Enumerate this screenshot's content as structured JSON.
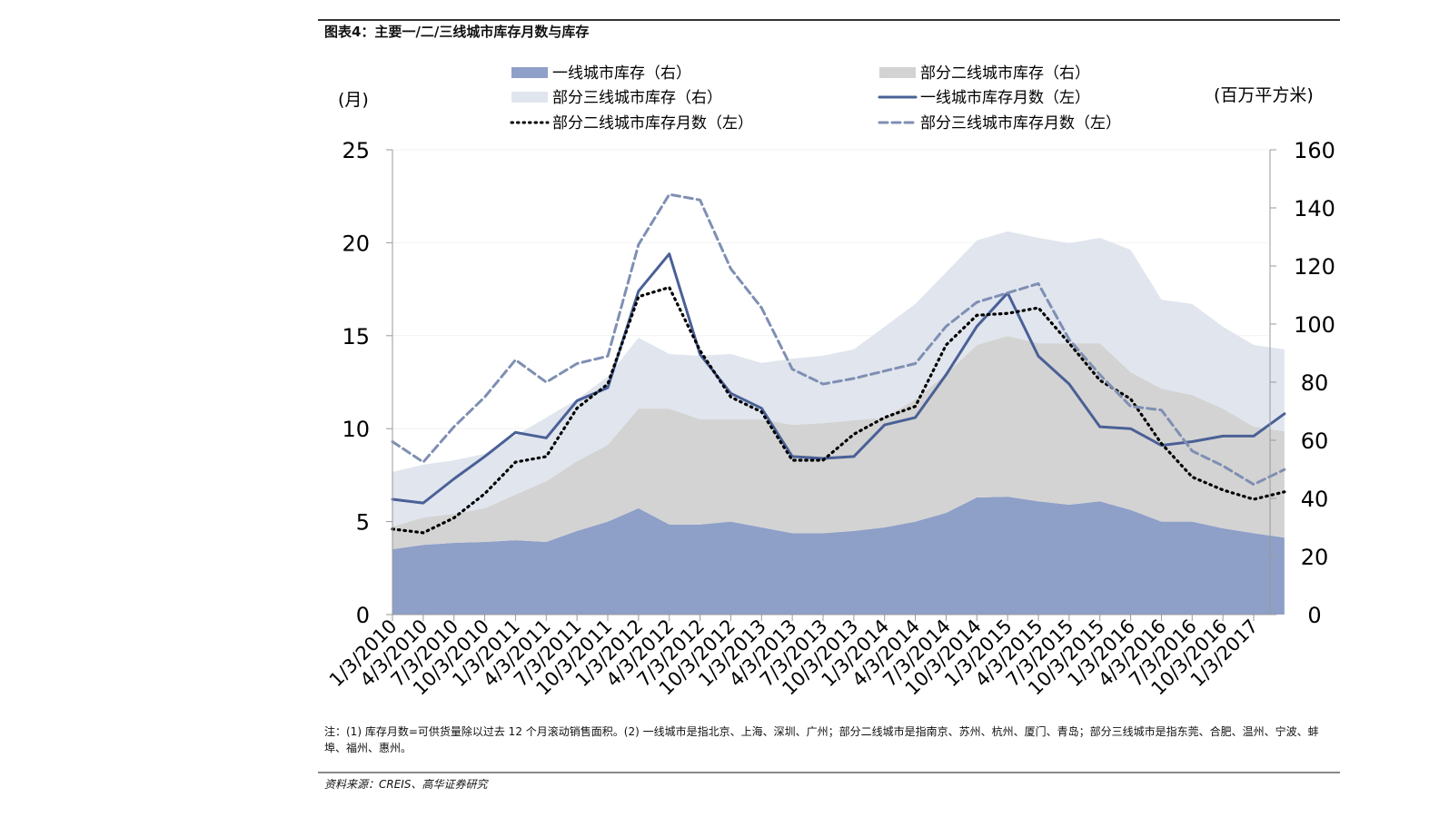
{
  "title": "图表4：主要一/二/三线城市库存月数与库存",
  "note": "注：(1) 库存月数=可供货量除以过去 12 个月滚动销售面积。(2) 一线城市是指北京、上海、深圳、广州；部分二线城市是指南京、苏州、杭州、厦门、青岛；部分三线城市是指东莞、合肥、温州、宁波、蚌埠、福州、惠州。",
  "source": "资料来源：CREIS、高华证券研究",
  "chart_data": {
    "type": "area+line",
    "title": "",
    "ylabel_left": "(月)",
    "ylabel_right": "(百万平方米)",
    "ylim_left": [
      0,
      25
    ],
    "ylim_right": [
      0,
      160
    ],
    "yticks_left": [
      "0",
      "5",
      "10",
      "15",
      "20",
      "25"
    ],
    "yticks_right": [
      "0",
      "20",
      "40",
      "60",
      "80",
      "100",
      "120",
      "140",
      "160"
    ],
    "grid": true,
    "legend_placement": "top",
    "xtick_labels": [
      "1/3/2010",
      "4/3/2010",
      "7/3/2010",
      "10/3/2010",
      "1/3/2011",
      "4/3/2011",
      "7/3/2011",
      "10/3/2011",
      "1/3/2012",
      "4/3/2012",
      "7/3/2012",
      "10/3/2012",
      "1/3/2013",
      "4/3/2013",
      "7/3/2013",
      "10/3/2013",
      "1/3/2014",
      "4/3/2014",
      "7/3/2014",
      "10/3/2014",
      "1/3/2015",
      "4/3/2015",
      "7/3/2015",
      "10/3/2015",
      "1/3/2016",
      "4/3/2016",
      "7/3/2016",
      "10/3/2016",
      "1/3/2017"
    ],
    "x": [
      "1/3/2010",
      "4/3/2010",
      "7/3/2010",
      "10/3/2010",
      "1/3/2011",
      "4/3/2011",
      "7/3/2011",
      "10/3/2011",
      "1/3/2012",
      "4/3/2012",
      "7/3/2012",
      "10/3/2012",
      "1/3/2013",
      "4/3/2013",
      "7/3/2013",
      "10/3/2013",
      "1/3/2014",
      "4/3/2014",
      "7/3/2014",
      "10/3/2014",
      "1/3/2015",
      "4/3/2015",
      "7/3/2015",
      "10/3/2015",
      "1/3/2016",
      "4/3/2016",
      "7/3/2016",
      "10/3/2016",
      "1/3/2017",
      "4/3/2017"
    ],
    "series": [
      {
        "name": "一线城市库存（右）",
        "kind": "stacked-area",
        "axis": "right",
        "color": "#8e9fc8",
        "values": [
          22.5,
          24,
          24.7,
          25,
          25.6,
          25,
          28.8,
          32,
          36.6,
          31,
          31,
          32,
          30,
          28,
          28,
          28.8,
          30,
          32,
          35,
          40.3,
          40.6,
          39,
          37.8,
          39,
          36,
          32,
          32,
          29.7,
          28,
          26.5
        ]
      },
      {
        "name": "部分二线城市库存（右）",
        "kind": "stacked-area",
        "axis": "right",
        "color": "#d3d3d3",
        "values": [
          7.8,
          9.4,
          10,
          11.6,
          15.7,
          20.9,
          24,
          26.4,
          34.3,
          39.9,
          36.2,
          35.2,
          37.2,
          37.3,
          37.9,
          38.1,
          37.8,
          42.1,
          47.8,
          52.5,
          55.3,
          54.4,
          55.6,
          54.4,
          47.4,
          45.8,
          43.6,
          41.2,
          36.7,
          36.6
        ]
      },
      {
        "name": "部分三线城市库存（右）",
        "kind": "stacked-area",
        "axis": "right",
        "color": "#e0e5ee",
        "values": [
          18.8,
          18.2,
          18.4,
          18.7,
          20.3,
          21.9,
          21.3,
          23.5,
          24.4,
          18.8,
          21.9,
          22.5,
          19.4,
          22.8,
          23.2,
          24.4,
          31.3,
          32.8,
          35,
          36,
          36,
          36.3,
          34.4,
          36.3,
          42.2,
          30.6,
          31.3,
          28.2,
          28.1,
          28.2
        ]
      },
      {
        "name": "一线城市库存月数（左）",
        "kind": "line",
        "style": "solid",
        "axis": "left",
        "color": "#4a6096",
        "values": [
          6.2,
          6.0,
          7.3,
          8.5,
          9.8,
          9.5,
          11.5,
          12.2,
          17.4,
          19.4,
          14,
          11.9,
          11.1,
          8.5,
          8.4,
          8.5,
          10.2,
          10.6,
          12.9,
          15.5,
          17.3,
          13.9,
          12.4,
          10.1,
          10,
          9.1,
          9.3,
          9.6,
          9.6,
          10.8
        ]
      },
      {
        "name": "部分二线城市库存月数（左）",
        "kind": "line",
        "style": "dotted",
        "axis": "left",
        "color": "#000000",
        "values": [
          4.6,
          4.4,
          5.2,
          6.5,
          8.2,
          8.5,
          11.1,
          12.4,
          17.1,
          17.6,
          14.2,
          11.7,
          10.9,
          8.3,
          8.3,
          9.7,
          10.6,
          11.2,
          14.5,
          16.1,
          16.2,
          16.5,
          14.6,
          12.6,
          11.6,
          9.2,
          7.4,
          6.7,
          6.2,
          6.6
        ]
      },
      {
        "name": "部分三线城市库存月数（左）",
        "kind": "line",
        "style": "dashed",
        "axis": "left",
        "color": "#7f8fb3",
        "values": [
          9.3,
          8.2,
          10.1,
          11.7,
          13.7,
          12.5,
          13.5,
          13.9,
          19.9,
          22.6,
          22.3,
          18.6,
          16.5,
          13.2,
          12.4,
          12.7,
          13.1,
          13.5,
          15.5,
          16.8,
          17.3,
          17.8,
          14.8,
          12.9,
          11.2,
          11.0,
          8.8,
          8.0,
          7.0,
          7.8
        ]
      }
    ]
  }
}
